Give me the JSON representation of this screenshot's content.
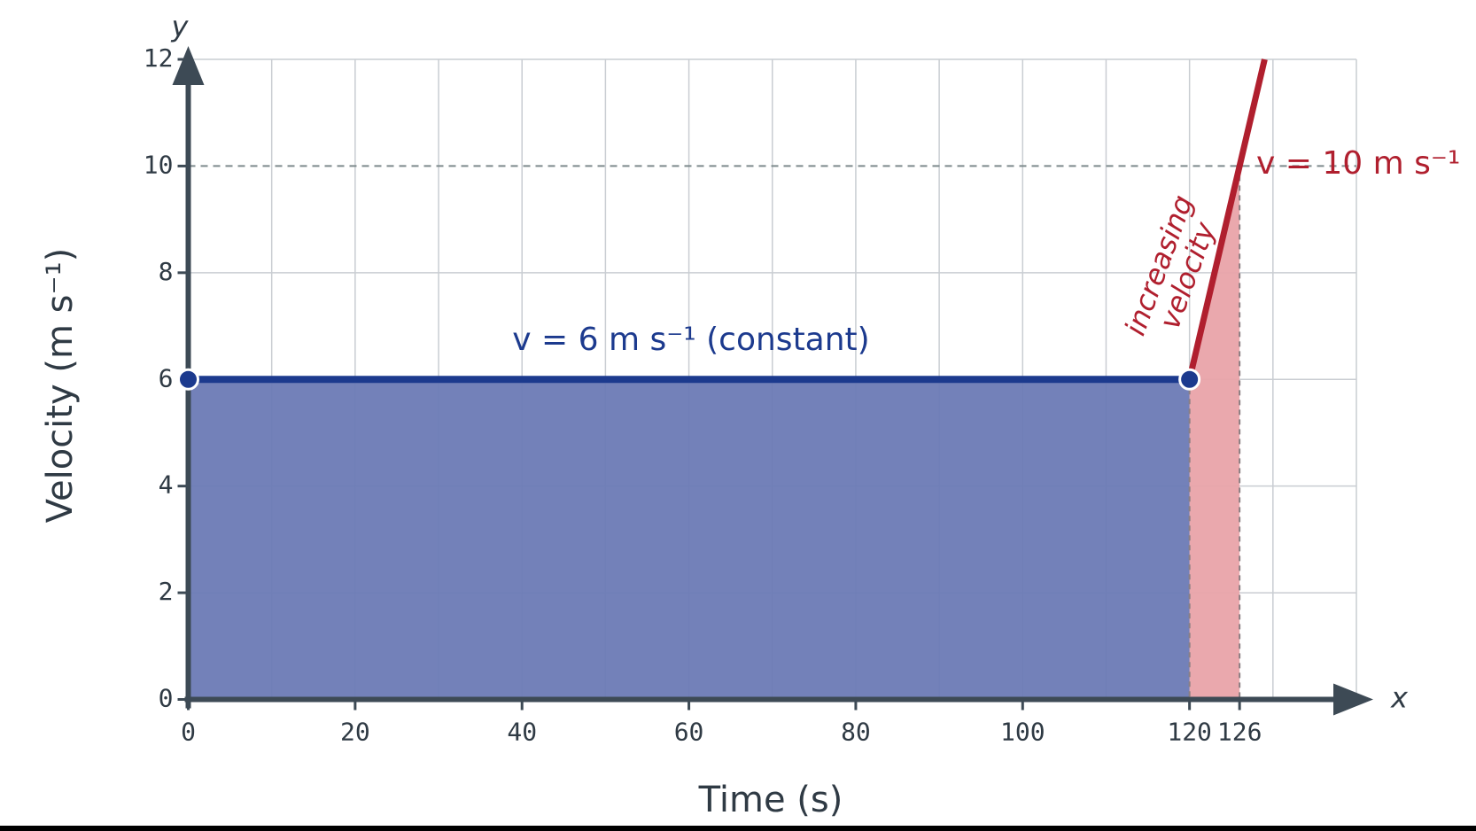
{
  "chart_data": {
    "type": "line",
    "x_label": "Time (s)",
    "y_label": "Velocity (m s⁻¹)",
    "x_axis_letter": "x",
    "y_axis_letter": "y",
    "xlim": [
      0,
      140
    ],
    "ylim": [
      0,
      12
    ],
    "xticks": [
      0,
      20,
      40,
      60,
      80,
      100,
      120,
      126
    ],
    "yticks": [
      0,
      2,
      4,
      6,
      8,
      10,
      12
    ],
    "xgrid": [
      0,
      10,
      20,
      30,
      40,
      50,
      60,
      70,
      80,
      90,
      100,
      110,
      120,
      130,
      140
    ],
    "grid": true,
    "hline": 10,
    "series": [
      {
        "name": "v = 6 m s⁻¹ (constant)",
        "color": "#1c3a8e",
        "fill": "#6b7ab5",
        "x": [
          0,
          120
        ],
        "values": [
          6,
          6
        ]
      },
      {
        "name": "v = 10 m s⁻¹",
        "color": "#b01f2e",
        "fill": "#e9a3a9",
        "x": [
          120,
          126,
          129
        ],
        "values": [
          6,
          10,
          12
        ]
      }
    ],
    "annotation": [
      "increasing",
      "velocity"
    ]
  }
}
